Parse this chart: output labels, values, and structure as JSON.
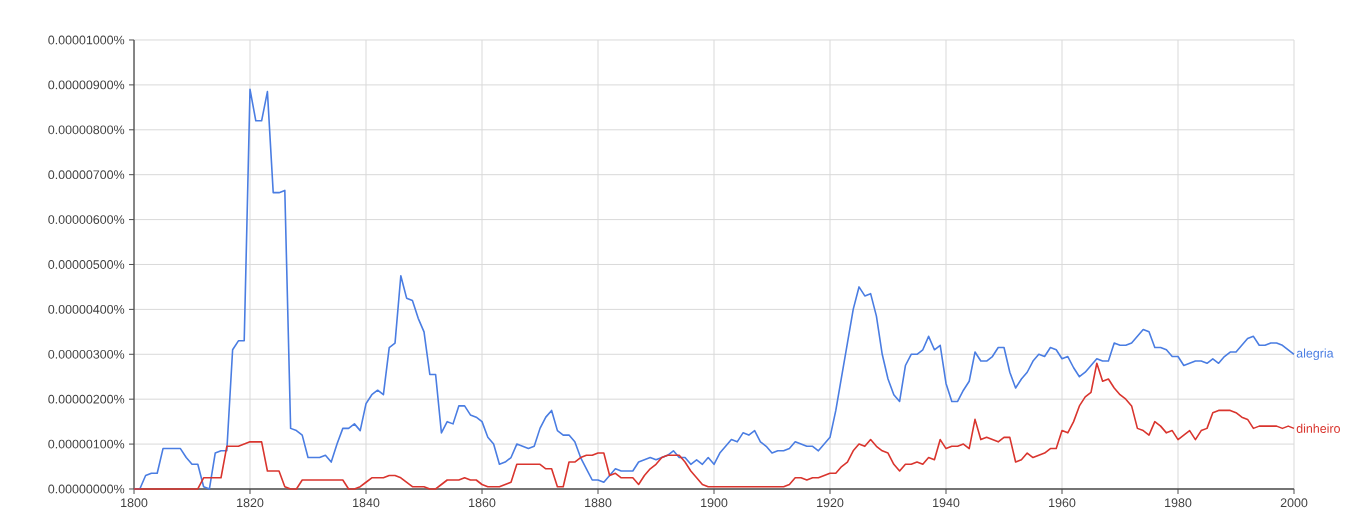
{
  "chart_data": {
    "type": "line",
    "legend": false,
    "grid": true,
    "marker": "none",
    "line_style": "solid",
    "x": [
      1800,
      1801,
      1802,
      1803,
      1804,
      1805,
      1806,
      1807,
      1808,
      1809,
      1810,
      1811,
      1812,
      1813,
      1814,
      1815,
      1816,
      1817,
      1818,
      1819,
      1820,
      1821,
      1822,
      1823,
      1824,
      1825,
      1826,
      1827,
      1828,
      1829,
      1830,
      1831,
      1832,
      1833,
      1834,
      1835,
      1836,
      1837,
      1838,
      1839,
      1840,
      1841,
      1842,
      1843,
      1844,
      1845,
      1846,
      1847,
      1848,
      1849,
      1850,
      1851,
      1852,
      1853,
      1854,
      1855,
      1856,
      1857,
      1858,
      1859,
      1860,
      1861,
      1862,
      1863,
      1864,
      1865,
      1866,
      1867,
      1868,
      1869,
      1870,
      1871,
      1872,
      1873,
      1874,
      1875,
      1876,
      1877,
      1878,
      1879,
      1880,
      1881,
      1882,
      1883,
      1884,
      1885,
      1886,
      1887,
      1888,
      1889,
      1890,
      1891,
      1892,
      1893,
      1894,
      1895,
      1896,
      1897,
      1898,
      1899,
      1900,
      1901,
      1902,
      1903,
      1904,
      1905,
      1906,
      1907,
      1908,
      1909,
      1910,
      1911,
      1912,
      1913,
      1914,
      1915,
      1916,
      1917,
      1918,
      1919,
      1920,
      1921,
      1922,
      1923,
      1924,
      1925,
      1926,
      1927,
      1928,
      1929,
      1930,
      1931,
      1932,
      1933,
      1934,
      1935,
      1936,
      1937,
      1938,
      1939,
      1940,
      1941,
      1942,
      1943,
      1944,
      1945,
      1946,
      1947,
      1948,
      1949,
      1950,
      1951,
      1952,
      1953,
      1954,
      1955,
      1956,
      1957,
      1958,
      1959,
      1960,
      1961,
      1962,
      1963,
      1964,
      1965,
      1966,
      1967,
      1968,
      1969,
      1970,
      1971,
      1972,
      1973,
      1974,
      1975,
      1976,
      1977,
      1978,
      1979,
      1980,
      1981,
      1982,
      1983,
      1984,
      1985,
      1986,
      1987,
      1988,
      1989,
      1990,
      1991,
      1992,
      1993,
      1994,
      1995,
      1996,
      1997,
      1998,
      1999,
      2000
    ],
    "xlim": [
      1800,
      2000
    ],
    "xticks": [
      1800,
      1820,
      1840,
      1860,
      1880,
      1900,
      1920,
      1940,
      1960,
      1980,
      2000
    ],
    "ylim": [
      0,
      1e-05
    ],
    "yticks": [
      {
        "value": 0,
        "label": "0.00000000%"
      },
      {
        "value": 1e-06,
        "label": "0.00000100%"
      },
      {
        "value": 2e-06,
        "label": "0.00000200%"
      },
      {
        "value": 3e-06,
        "label": "0.00000300%"
      },
      {
        "value": 4e-06,
        "label": "0.00000400%"
      },
      {
        "value": 5e-06,
        "label": "0.00000500%"
      },
      {
        "value": 6e-06,
        "label": "0.00000600%"
      },
      {
        "value": 7e-06,
        "label": "0.00000700%"
      },
      {
        "value": 8e-06,
        "label": "0.00000800%"
      },
      {
        "value": 9e-06,
        "label": "0.00000900%"
      },
      {
        "value": 1e-05,
        "label": "0.00001000%"
      }
    ],
    "series": [
      {
        "name": "alegria",
        "color": "#4a7de2",
        "values": [
          0,
          0,
          3e-07,
          3.5e-07,
          3.5e-07,
          9e-07,
          9e-07,
          9e-07,
          9e-07,
          7e-07,
          5.5e-07,
          5.5e-07,
          5e-08,
          0,
          8e-07,
          8.5e-07,
          8.5e-07,
          3.1e-06,
          3.3e-06,
          3.3e-06,
          8.9e-06,
          8.2e-06,
          8.2e-06,
          8.85e-06,
          6.6e-06,
          6.6e-06,
          6.65e-06,
          1.35e-06,
          1.3e-06,
          1.2e-06,
          7e-07,
          7e-07,
          7e-07,
          7.5e-07,
          6e-07,
          1e-06,
          1.35e-06,
          1.35e-06,
          1.45e-06,
          1.3e-06,
          1.9e-06,
          2.1e-06,
          2.2e-06,
          2.1e-06,
          3.15e-06,
          3.25e-06,
          4.75e-06,
          4.25e-06,
          4.2e-06,
          3.8e-06,
          3.5e-06,
          2.55e-06,
          2.55e-06,
          1.25e-06,
          1.5e-06,
          1.45e-06,
          1.85e-06,
          1.85e-06,
          1.65e-06,
          1.6e-06,
          1.5e-06,
          1.15e-06,
          1e-06,
          5.5e-07,
          6e-07,
          7e-07,
          1e-06,
          9.5e-07,
          9e-07,
          9.5e-07,
          1.35e-06,
          1.6e-06,
          1.75e-06,
          1.3e-06,
          1.2e-06,
          1.2e-06,
          1.05e-06,
          7e-07,
          4.5e-07,
          2e-07,
          2e-07,
          1.5e-07,
          3e-07,
          4.5e-07,
          4e-07,
          4e-07,
          4e-07,
          6e-07,
          6.5e-07,
          7e-07,
          6.5e-07,
          7e-07,
          7.5e-07,
          8.5e-07,
          7e-07,
          7e-07,
          5.5e-07,
          6.5e-07,
          5.5e-07,
          7e-07,
          5.5e-07,
          8e-07,
          9.5e-07,
          1.1e-06,
          1.05e-06,
          1.25e-06,
          1.2e-06,
          1.3e-06,
          1.05e-06,
          9.5e-07,
          8e-07,
          8.5e-07,
          8.5e-07,
          9e-07,
          1.05e-06,
          1e-06,
          9.5e-07,
          9.5e-07,
          8.5e-07,
          1e-06,
          1.15e-06,
          1.75e-06,
          2.5e-06,
          3.25e-06,
          4e-06,
          4.5e-06,
          4.3e-06,
          4.35e-06,
          3.85e-06,
          3e-06,
          2.45e-06,
          2.1e-06,
          1.95e-06,
          2.75e-06,
          3e-06,
          3e-06,
          3.1e-06,
          3.4e-06,
          3.1e-06,
          3.2e-06,
          2.35e-06,
          1.95e-06,
          1.95e-06,
          2.2e-06,
          2.4e-06,
          3.05e-06,
          2.85e-06,
          2.85e-06,
          2.95e-06,
          3.15e-06,
          3.15e-06,
          2.6e-06,
          2.25e-06,
          2.45e-06,
          2.6e-06,
          2.85e-06,
          3e-06,
          2.95e-06,
          3.15e-06,
          3.1e-06,
          2.9e-06,
          2.95e-06,
          2.7e-06,
          2.5e-06,
          2.6e-06,
          2.75e-06,
          2.9e-06,
          2.85e-06,
          2.85e-06,
          3.25e-06,
          3.2e-06,
          3.2e-06,
          3.25e-06,
          3.4e-06,
          3.55e-06,
          3.5e-06,
          3.15e-06,
          3.15e-06,
          3.1e-06,
          2.95e-06,
          2.95e-06,
          2.75e-06,
          2.8e-06,
          2.85e-06,
          2.85e-06,
          2.8e-06,
          2.9e-06,
          2.8e-06,
          2.95e-06,
          3.05e-06,
          3.05e-06,
          3.2e-06,
          3.35e-06,
          3.4e-06,
          3.2e-06,
          3.2e-06,
          3.25e-06,
          3.25e-06,
          3.2e-06,
          3.1e-06,
          3e-06
        ]
      },
      {
        "name": "dinheiro",
        "color": "#d9352e",
        "values": [
          0,
          0,
          0,
          0,
          0,
          0,
          0,
          0,
          0,
          0,
          0,
          0,
          2.5e-07,
          2.5e-07,
          2.5e-07,
          2.5e-07,
          9.5e-07,
          9.5e-07,
          9.5e-07,
          1e-06,
          1.05e-06,
          1.05e-06,
          1.05e-06,
          4e-07,
          4e-07,
          4e-07,
          5e-08,
          0,
          0,
          2e-07,
          2e-07,
          2e-07,
          2e-07,
          2e-07,
          2e-07,
          2e-07,
          2e-07,
          0,
          0,
          5e-08,
          1.5e-07,
          2.5e-07,
          2.5e-07,
          2.5e-07,
          3e-07,
          3e-07,
          2.5e-07,
          1.5e-07,
          5e-08,
          5e-08,
          5e-08,
          0,
          0,
          1e-07,
          2e-07,
          2e-07,
          2e-07,
          2.5e-07,
          2e-07,
          2e-07,
          1e-07,
          5e-08,
          5e-08,
          5e-08,
          1e-07,
          1.5e-07,
          5.5e-07,
          5.5e-07,
          5.5e-07,
          5.5e-07,
          5.5e-07,
          4.5e-07,
          4.5e-07,
          5e-08,
          5e-08,
          6e-07,
          6e-07,
          7e-07,
          7.5e-07,
          7.5e-07,
          8e-07,
          8e-07,
          3e-07,
          3.5e-07,
          2.5e-07,
          2.5e-07,
          2.5e-07,
          1e-07,
          3e-07,
          4.5e-07,
          5.5e-07,
          7e-07,
          7.5e-07,
          7.5e-07,
          7.5e-07,
          6e-07,
          4e-07,
          2.5e-07,
          1e-07,
          5e-08,
          5e-08,
          5e-08,
          5e-08,
          5e-08,
          5e-08,
          5e-08,
          5e-08,
          5e-08,
          5e-08,
          5e-08,
          5e-08,
          5e-08,
          5e-08,
          1e-07,
          2.5e-07,
          2.5e-07,
          2e-07,
          2.5e-07,
          2.5e-07,
          3e-07,
          3.5e-07,
          3.5e-07,
          5e-07,
          6e-07,
          8.5e-07,
          1e-06,
          9.5e-07,
          1.1e-06,
          9.5e-07,
          8.5e-07,
          8e-07,
          5.5e-07,
          4e-07,
          5.5e-07,
          5.5e-07,
          6e-07,
          5.5e-07,
          7e-07,
          6.5e-07,
          1.1e-06,
          9e-07,
          9.5e-07,
          9.5e-07,
          1e-06,
          9e-07,
          1.55e-06,
          1.1e-06,
          1.15e-06,
          1.1e-06,
          1.05e-06,
          1.15e-06,
          1.15e-06,
          6e-07,
          6.5e-07,
          8e-07,
          7e-07,
          7.5e-07,
          8e-07,
          9e-07,
          9e-07,
          1.3e-06,
          1.25e-06,
          1.5e-06,
          1.85e-06,
          2.05e-06,
          2.15e-06,
          2.8e-06,
          2.4e-06,
          2.45e-06,
          2.25e-06,
          2.1e-06,
          2e-06,
          1.85e-06,
          1.35e-06,
          1.3e-06,
          1.2e-06,
          1.5e-06,
          1.4e-06,
          1.25e-06,
          1.3e-06,
          1.1e-06,
          1.2e-06,
          1.3e-06,
          1.1e-06,
          1.3e-06,
          1.35e-06,
          1.7e-06,
          1.75e-06,
          1.75e-06,
          1.75e-06,
          1.7e-06,
          1.6e-06,
          1.55e-06,
          1.35e-06,
          1.4e-06,
          1.4e-06,
          1.4e-06,
          1.4e-06,
          1.35e-06,
          1.4e-06,
          1.35e-06
        ]
      }
    ]
  }
}
